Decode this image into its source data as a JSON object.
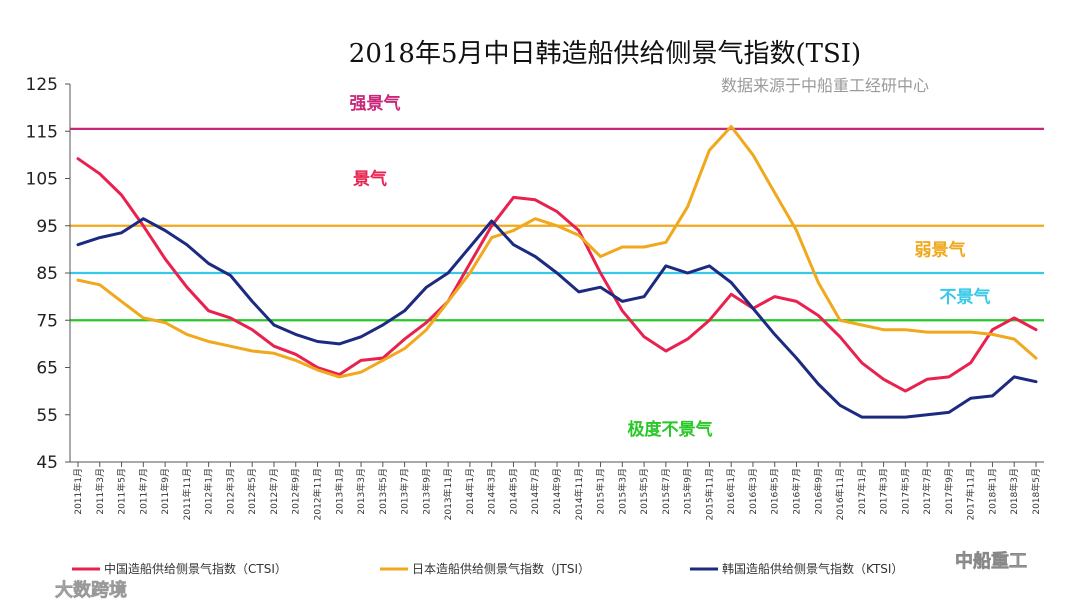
{
  "chart_data": {
    "type": "line",
    "title": "2018年5月中日韩造船供给侧景气指数(TSI)",
    "subtitle": "数据来源于中船重工经研中心",
    "ylim": [
      45,
      125
    ],
    "yticks": [
      45,
      55,
      65,
      75,
      85,
      95,
      105,
      115,
      125
    ],
    "x": [
      "2011年1月",
      "2011年3月",
      "2011年5月",
      "2011年7月",
      "2011年9月",
      "2011年11月",
      "2012年1月",
      "2012年3月",
      "2012年5月",
      "2012年7月",
      "2012年9月",
      "2012年11月",
      "2013年1月",
      "2013年3月",
      "2013年5月",
      "2013年7月",
      "2013年9月",
      "2013年11月",
      "2014年1月",
      "2014年3月",
      "2014年5月",
      "2014年7月",
      "2014年9月",
      "2014年11月",
      "2015年1月",
      "2015年3月",
      "2015年5月",
      "2015年7月",
      "2015年9月",
      "2015年11月",
      "2016年1月",
      "2016年3月",
      "2016年5月",
      "2016年7月",
      "2016年9月",
      "2016年11月",
      "2017年1月",
      "2017年3月",
      "2017年5月",
      "2017年7月",
      "2017年9月",
      "2017年11月",
      "2018年1月",
      "2018年3月",
      "2018年5月"
    ],
    "reference_lines": [
      {
        "value": 115.5,
        "label": "强景气",
        "color": "#c8287a"
      },
      {
        "value": 95,
        "label": "弱景气",
        "color": "#f0a81c"
      },
      {
        "value": 85,
        "label": "不景气",
        "color": "#38c8e8"
      },
      {
        "value": 75,
        "label": "极度不景气",
        "color": "#28c828"
      }
    ],
    "zone_labels": [
      {
        "text": "强景气",
        "value": 121,
        "color": "#c8287a"
      },
      {
        "text": "景气",
        "value": 105,
        "color": "#e8214f"
      },
      {
        "text": "弱景气",
        "value": 90,
        "color": "#f0a81c"
      },
      {
        "text": "不景气",
        "value": 80,
        "color": "#38c8e8"
      },
      {
        "text": "极度不景气",
        "value": 52,
        "color": "#28c828"
      }
    ],
    "series": [
      {
        "name": "中国造船供给侧景气指数（CTSI）",
        "color": "#e8214f",
        "values": [
          109.2,
          106,
          101.5,
          95,
          88,
          82,
          77,
          75.5,
          73,
          69.5,
          67.8,
          65,
          63.5,
          66.5,
          67,
          71,
          74.5,
          79,
          87,
          95,
          101,
          100.5,
          98,
          94,
          85,
          77,
          71.5,
          68.5,
          71,
          75,
          80.5,
          77.5,
          80,
          79,
          76,
          71.5,
          66,
          62.5,
          60,
          62.5,
          63,
          66,
          73,
          75.5,
          73
        ]
      },
      {
        "name": "日本造船供给侧景气指数（JTSI）",
        "color": "#f0a81c",
        "values": [
          83.5,
          82.5,
          79,
          75.5,
          74.5,
          72,
          70.5,
          69.5,
          68.5,
          68,
          66.5,
          64.5,
          63,
          64,
          66.5,
          69,
          73,
          79,
          85,
          92.5,
          94,
          96.5,
          95,
          93,
          88.5,
          90.5,
          90.5,
          91.5,
          99,
          111,
          116,
          110,
          102,
          94,
          83,
          75,
          74,
          73,
          73,
          72.5,
          72.5,
          72.5,
          72,
          71,
          67
        ]
      },
      {
        "name": "韩国造船供给侧景气指数（KTSI）",
        "color": "#1c2a80",
        "values": [
          91,
          92.5,
          93.5,
          96.5,
          94,
          91,
          87,
          84.5,
          79,
          74,
          72,
          70.5,
          70,
          71.5,
          74,
          77,
          82,
          85,
          90.5,
          96,
          91,
          88.5,
          85,
          81,
          82,
          79,
          80,
          86.5,
          85,
          86.5,
          83,
          77.5,
          72,
          67,
          61.5,
          57,
          54.5,
          54.5,
          54.5,
          55,
          55.5,
          58.5,
          59,
          63,
          62
        ]
      }
    ]
  },
  "watermarks": {
    "wechat": "中船重工",
    "brand": "大数跨境"
  }
}
